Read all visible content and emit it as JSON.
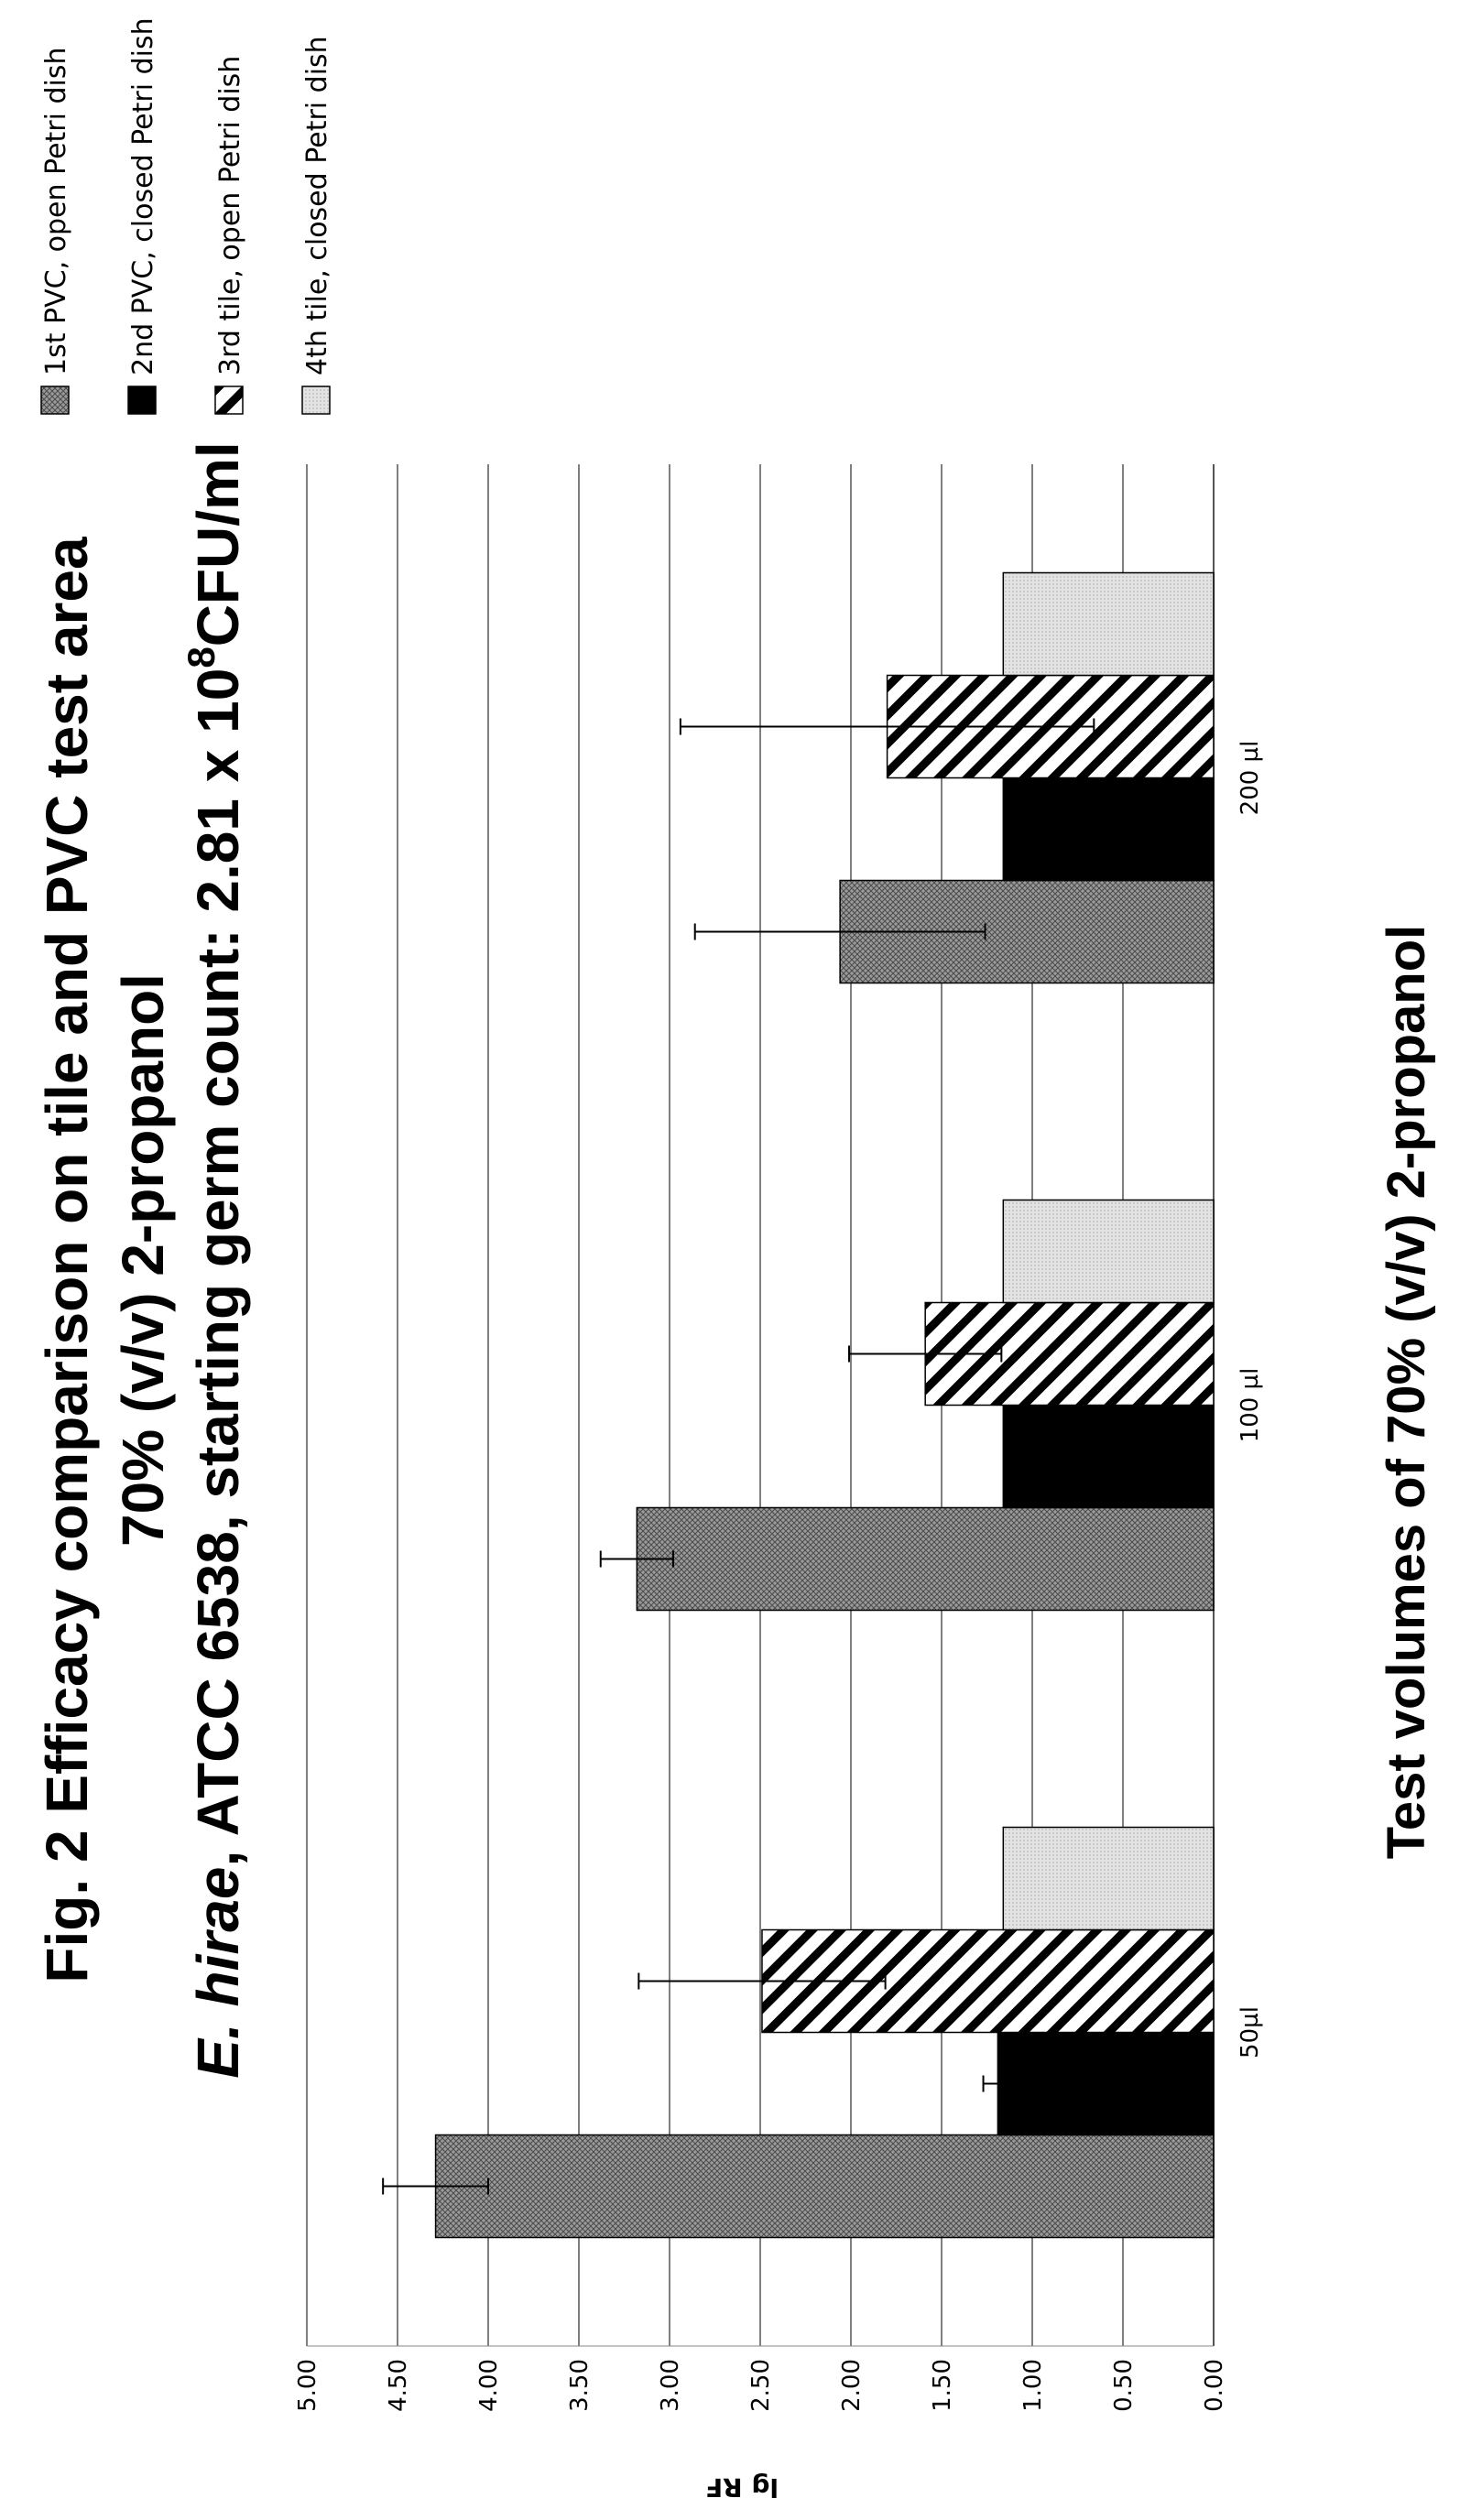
{
  "chart_data": {
    "type": "bar",
    "title": {
      "line1": "Fig. 2  Efficacy comparison on tile and PVC test area",
      "line2": "70% (v/v) 2-propanol",
      "line3_italic": "E. hirae",
      "line3_rest": ", ATCC 6538, starting germ count: 2.81 x 10",
      "line3_sup": "8",
      "line3_end": "CFU/ml"
    },
    "xlabel": "Test volumes of 70% (v/v) 2-propanol",
    "ylabel": "lg RF",
    "ylim": [
      0,
      5
    ],
    "yticks": [
      "0.00",
      "0.50",
      "1.00",
      "1.50",
      "2.00",
      "2.50",
      "3.00",
      "3.50",
      "4.00",
      "4.50",
      "5.00"
    ],
    "grid": true,
    "legend_position": "right",
    "categories": [
      "50µl",
      "100 µl",
      "200 µl"
    ],
    "series": [
      {
        "name": "1st PVC, open Petri dish",
        "pattern": "crosshatch-gray",
        "values": [
          4.29,
          3.18,
          2.06
        ],
        "errors": [
          0.29,
          0.2,
          0.8
        ]
      },
      {
        "name": "2nd PVC, closed Petri dish",
        "pattern": "solid-black",
        "values": [
          1.19,
          1.16,
          1.16
        ],
        "errors": [
          0.08,
          null,
          null
        ]
      },
      {
        "name": "3rd tile, open Petri dish",
        "pattern": "diagonal-stripes",
        "values": [
          2.49,
          1.59,
          1.8
        ],
        "errors": [
          0.68,
          0.42,
          1.14
        ]
      },
      {
        "name": "4th tile, closed Petri dish",
        "pattern": "dots-light-gray",
        "values": [
          1.16,
          1.16,
          1.16
        ],
        "errors": [
          null,
          null,
          null
        ]
      }
    ]
  }
}
